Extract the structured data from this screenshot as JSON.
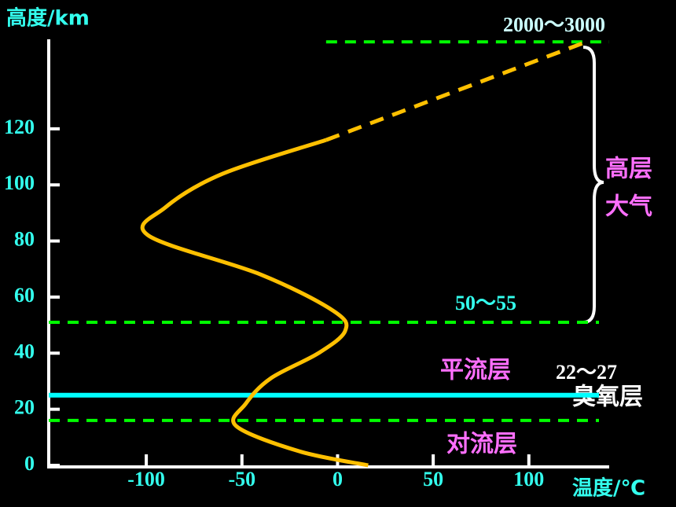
{
  "chart_data": {
    "type": "line",
    "y_label": "高度/km",
    "x_label": "温度/℃",
    "xlim": [
      -151,
      142
    ],
    "ylim": [
      0,
      155
    ],
    "xticks": [
      -100,
      -50,
      0,
      50,
      100
    ],
    "yticks": [
      0,
      20,
      40,
      60,
      80,
      100,
      120
    ],
    "series": [
      {
        "color": "#ffc000",
        "dashed": false,
        "x": [
          16,
          -20,
          -53,
          -48,
          -35,
          -10,
          4,
          -2,
          -40,
          -99,
          -90,
          -60,
          -6
        ],
        "values": [
          0,
          5,
          14,
          22,
          31,
          40,
          48,
          55,
          68,
          82,
          92,
          104,
          116
        ]
      },
      {
        "color": "#ffc000",
        "dashed": true,
        "x": [
          -6,
          130
        ],
        "values": [
          116,
          151
        ]
      }
    ],
    "hlines": [
      {
        "value": 151,
        "color": "#00ff00",
        "dashed": true,
        "label": "2000～3000"
      },
      {
        "value": 51,
        "color": "#00ff00",
        "dashed": true,
        "label": "50～55"
      },
      {
        "value": 25,
        "color": "#00ffff",
        "dashed": false,
        "label": "22～27"
      },
      {
        "value": 16,
        "color": "#00ff00",
        "dashed": true
      }
    ],
    "layers": [
      "对流层",
      "平流层",
      "臭氧层",
      "高层",
      "大气"
    ]
  }
}
